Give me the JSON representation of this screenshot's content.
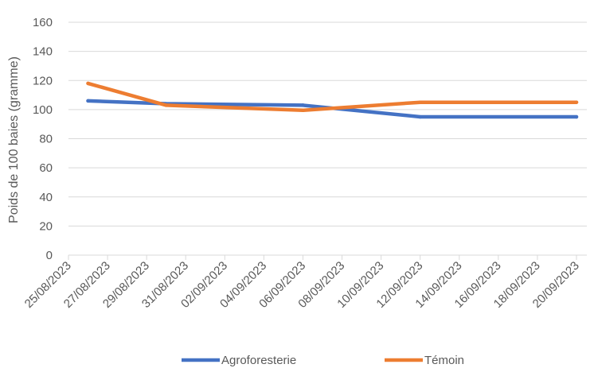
{
  "chart_data": {
    "type": "line",
    "title": "",
    "xlabel": "",
    "ylabel": "Poids de 100 baies (gramme)",
    "ylim": [
      0,
      160
    ],
    "yticks": [
      0,
      20,
      40,
      60,
      80,
      100,
      120,
      140,
      160
    ],
    "grid": "horizontal",
    "legend_position": "bottom",
    "x": [
      "25/08/2023",
      "27/08/2023",
      "29/08/2023",
      "31/08/2023",
      "02/09/2023",
      "04/09/2023",
      "06/09/2023",
      "08/09/2023",
      "10/09/2023",
      "12/09/2023",
      "14/09/2023",
      "16/09/2023",
      "18/09/2023",
      "20/09/2023"
    ],
    "series": [
      {
        "name": "Agroforesterie",
        "color": "#4472C4",
        "points": [
          {
            "x": "26/08/2023",
            "y": 106
          },
          {
            "x": "30/08/2023",
            "y": 104
          },
          {
            "x": "06/09/2023",
            "y": 103
          },
          {
            "x": "12/09/2023",
            "y": 95
          },
          {
            "x": "20/09/2023",
            "y": 95
          }
        ]
      },
      {
        "name": "Témoin",
        "color": "#ED7D31",
        "points": [
          {
            "x": "26/08/2023",
            "y": 118
          },
          {
            "x": "30/08/2023",
            "y": 103
          },
          {
            "x": "06/09/2023",
            "y": 99.5
          },
          {
            "x": "12/09/2023",
            "y": 105
          },
          {
            "x": "20/09/2023",
            "y": 105
          }
        ]
      }
    ]
  }
}
